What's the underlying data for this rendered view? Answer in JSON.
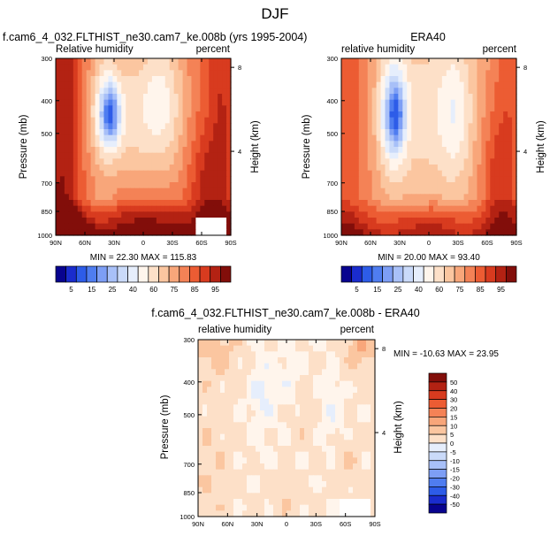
{
  "figure": {
    "title": "DJF"
  },
  "colors": {
    "palette": [
      "#08038f",
      "#1a2ccd",
      "#2d5ce8",
      "#4f7df0",
      "#7d9ef5",
      "#a8c0f8",
      "#cadaf9",
      "#e6eefc",
      "#fff5ec",
      "#fde0c8",
      "#fbc6a0",
      "#f8a67a",
      "#f48256",
      "#ec5c33",
      "#d83b1f",
      "#b32213",
      "#820e0a"
    ],
    "missing": "#ffffff"
  },
  "chart_data": [
    {
      "type": "heatmap",
      "id": "model",
      "title": "f.cam6_4_032.FLTHIST_ne30.cam7_ke.008b (yrs 1995-2004)",
      "left_label": "Relative humidity",
      "right_label": "percent",
      "ylabel": "Pressure (mb)",
      "ylabel_right": "Height (km)",
      "x_ticks": [
        "90N",
        "60N",
        "30N",
        "0",
        "30S",
        "60S",
        "90S"
      ],
      "y_ticks": [
        "300",
        "400",
        "500",
        "700",
        "850",
        "1000"
      ],
      "right_ticks": [
        "8",
        "4"
      ],
      "min_label": "MIN =  22.30   MAX = 115.83",
      "colorbar_labels": [
        "5",
        "15",
        "25",
        "40",
        "60",
        "75",
        "85",
        "95"
      ],
      "min": 22.3,
      "max": 115.83
    },
    {
      "type": "heatmap",
      "id": "obs",
      "title": "ERA40",
      "left_label": "relative humidity",
      "right_label": "percent",
      "ylabel": "Pressure (mb)",
      "ylabel_right": "Height (km)",
      "x_ticks": [
        "90N",
        "60N",
        "30N",
        "0",
        "30S",
        "60S",
        "90S"
      ],
      "y_ticks": [
        "300",
        "400",
        "500",
        "700",
        "850",
        "1000"
      ],
      "right_ticks": [
        "8",
        "4"
      ],
      "min_label": "MIN =  20.00   MAX =  93.40",
      "colorbar_labels": [
        "5",
        "15",
        "25",
        "40",
        "60",
        "75",
        "85",
        "95"
      ],
      "min": 20.0,
      "max": 93.4
    },
    {
      "type": "heatmap",
      "id": "diff",
      "title": "f.cam6_4_032.FLTHIST_ne30.cam7_ke.008b - ERA40",
      "left_label": "relative humidity",
      "right_label": "percent",
      "ylabel": "Pressure (mb)",
      "ylabel_right": "Height (km)",
      "x_ticks": [
        "90N",
        "60N",
        "30N",
        "0",
        "30S",
        "60S",
        "90S"
      ],
      "y_ticks": [
        "300",
        "400",
        "500",
        "700",
        "850",
        "1000"
      ],
      "right_ticks": [
        "8",
        "4"
      ],
      "min_label": "MIN = -10.63   MAX =  23.95",
      "colorbar_labels": [
        "50",
        "40",
        "30",
        "20",
        "15",
        "10",
        "5",
        "0",
        "-5",
        "-10",
        "-15",
        "-20",
        "-30",
        "-40",
        "-50"
      ],
      "min": -10.63,
      "max": 23.95
    }
  ]
}
